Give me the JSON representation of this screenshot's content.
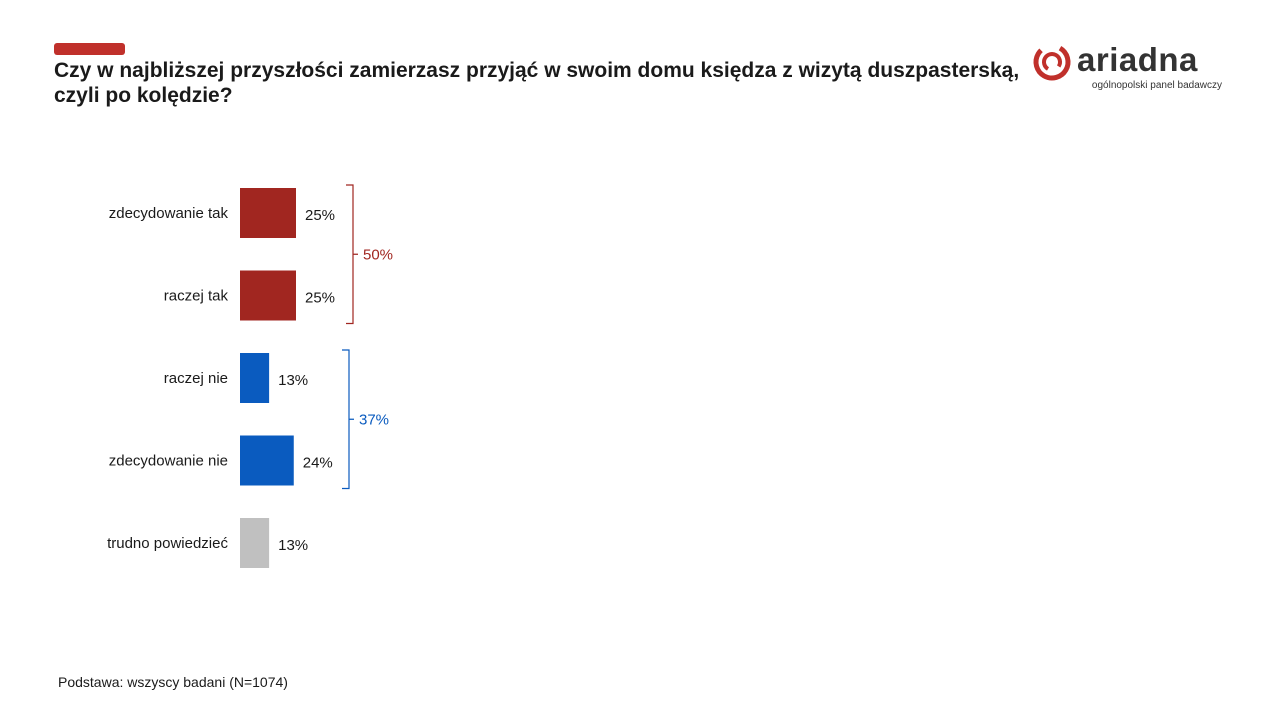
{
  "header": {
    "title": "Czy w najbliższej przyszłości zamierzasz przyjąć w swoim domu księdza z wizytą duszpasterską, czyli po kolędzie?"
  },
  "logo": {
    "wordmark": "ariadna",
    "tagline": "ogólnopolski panel badawczy",
    "icon": "ariadna-spiral-icon"
  },
  "colors": {
    "accent": "#c0302b",
    "yes": "#a12620",
    "no": "#0a5bbf",
    "neutral": "#c0c0c0"
  },
  "chart_data": {
    "type": "bar",
    "orientation": "horizontal",
    "categories": [
      "zdecydowanie tak",
      "raczej tak",
      "raczej nie",
      "zdecydowanie nie",
      "trudno powiedzieć"
    ],
    "values": [
      25,
      25,
      13,
      24,
      13
    ],
    "data_labels": [
      "25%",
      "25%",
      "13%",
      "24%",
      "13%"
    ],
    "unit": "%",
    "groups": [
      {
        "label": "50%",
        "value": 50,
        "from": 0,
        "to": 1,
        "color": "#a12620"
      },
      {
        "label": "37%",
        "value": 37,
        "from": 2,
        "to": 3,
        "color": "#0a5bbf"
      }
    ],
    "bar_colors": [
      "#a12620",
      "#a12620",
      "#0a5bbf",
      "#0a5bbf",
      "#c0c0c0"
    ],
    "grid": false,
    "legend": "none"
  },
  "footer": {
    "note": "Podstawa: wszyscy badani (N=1074)"
  }
}
